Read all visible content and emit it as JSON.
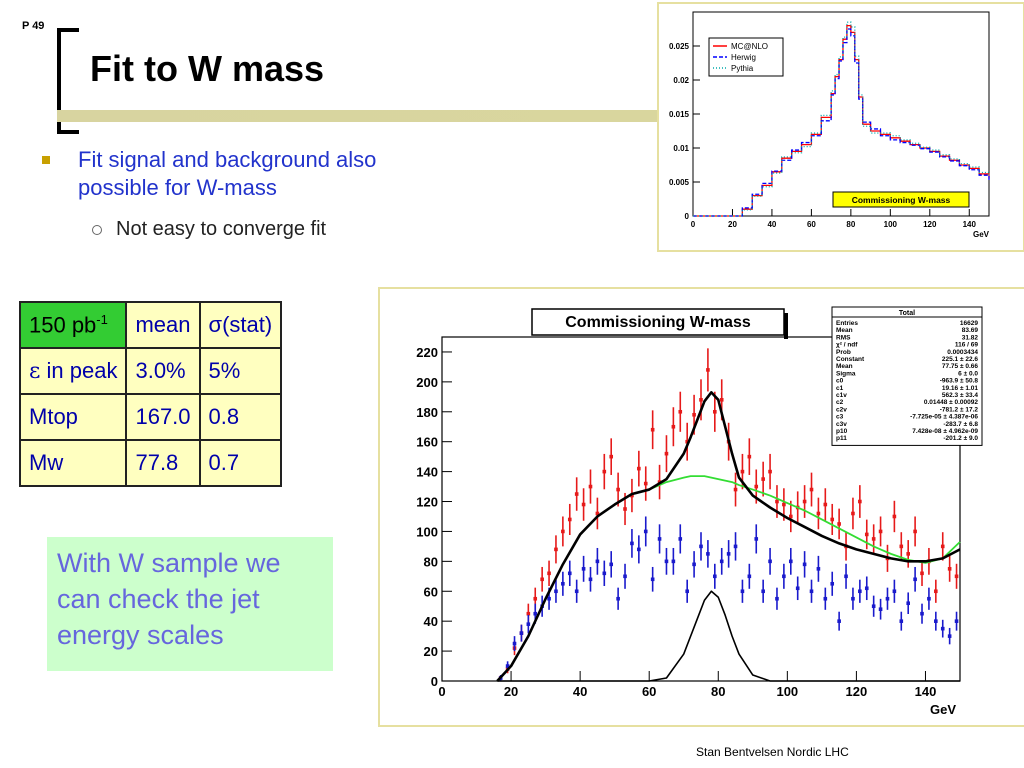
{
  "slide": {
    "page_number": "P 49",
    "title": "Fit to W mass",
    "bullet1": "Fit signal and background also possible for W-mass",
    "bullet2": "Not easy to converge fit",
    "note": "With W sample we can check the jet energy scales",
    "footer": "Stan Bentvelsen Nordic LHC"
  },
  "table": {
    "header": [
      "150 pb",
      "-1",
      "mean",
      "σ(stat)"
    ],
    "rows": [
      {
        "label_sym": "ε",
        "label": " in peak",
        "mean": "3.0%",
        "stat": "5%"
      },
      {
        "label": "Mtop",
        "mean": "167.0",
        "stat": "0.8"
      },
      {
        "label": "Mw",
        "mean": "77.8",
        "stat": "0.7"
      }
    ]
  },
  "colors": {
    "red": "#e61a1a",
    "blue": "#1a1acc",
    "green": "#33dd33",
    "black": "#000000",
    "table_bg": "#ffffc0",
    "header_bg": "#33cc33",
    "note_bg": "#ccffcc"
  },
  "chart_data": [
    {
      "type": "line",
      "legend_placement": "top-left",
      "xlabel": "GeV",
      "xlim": [
        0,
        150
      ],
      "ylim": [
        0,
        0.03
      ],
      "xticks": [
        "0",
        "20",
        "40",
        "60",
        "80",
        "100",
        "120",
        "140"
      ],
      "yticks": [
        "0",
        "0.005",
        "0.01",
        "0.015",
        "0.02",
        "0.025"
      ],
      "label_box": "Commissioning W-mass",
      "x": [
        0,
        10,
        15,
        20,
        25,
        30,
        35,
        40,
        45,
        50,
        55,
        60,
        65,
        70,
        72,
        74,
        76,
        78,
        80,
        82,
        84,
        86,
        90,
        95,
        100,
        105,
        110,
        115,
        120,
        125,
        130,
        135,
        140,
        145,
        150
      ],
      "series": [
        {
          "name": "MC@NLO",
          "values": [
            0,
            0,
            0,
            0,
            0.001,
            0.003,
            0.0045,
            0.0065,
            0.0085,
            0.0095,
            0.0105,
            0.012,
            0.0145,
            0.018,
            0.0205,
            0.023,
            0.026,
            0.028,
            0.027,
            0.023,
            0.0175,
            0.0135,
            0.0125,
            0.012,
            0.0115,
            0.011,
            0.0105,
            0.01,
            0.0095,
            0.0088,
            0.0082,
            0.0075,
            0.007,
            0.0062,
            0.0055
          ]
        },
        {
          "name": "Herwig",
          "values": [
            0,
            0,
            0,
            0,
            0.0012,
            0.0032,
            0.0048,
            0.0066,
            0.0082,
            0.0097,
            0.0108,
            0.0118,
            0.014,
            0.0178,
            0.0202,
            0.0228,
            0.0255,
            0.0275,
            0.0265,
            0.0225,
            0.0172,
            0.0138,
            0.0128,
            0.0118,
            0.0112,
            0.0108,
            0.0104,
            0.0099,
            0.0094,
            0.0087,
            0.0081,
            0.0074,
            0.0068,
            0.006,
            0.0052
          ]
        },
        {
          "name": "Pythia",
          "values": [
            0,
            0,
            0,
            0,
            0.0009,
            0.0029,
            0.0043,
            0.0063,
            0.0087,
            0.0093,
            0.0102,
            0.0122,
            0.0148,
            0.0184,
            0.0208,
            0.0234,
            0.0263,
            0.0285,
            0.0278,
            0.0235,
            0.0178,
            0.0132,
            0.0122,
            0.0122,
            0.0118,
            0.0112,
            0.0107,
            0.0101,
            0.0097,
            0.009,
            0.0084,
            0.0077,
            0.0072,
            0.0064,
            0.0057
          ]
        }
      ]
    },
    {
      "type": "scatter",
      "title": "Commissioning W-mass",
      "xlabel": "GeV",
      "xlim": [
        0,
        150
      ],
      "ylim": [
        0,
        230
      ],
      "xticks": [
        "0",
        "20",
        "40",
        "60",
        "80",
        "100",
        "120",
        "140"
      ],
      "yticks": [
        "0",
        "20",
        "40",
        "60",
        "80",
        "100",
        "120",
        "140",
        "160",
        "180",
        "200",
        "220"
      ],
      "series": [
        {
          "name": "",
          "color": "red",
          "x": [
            17,
            19,
            21,
            23,
            25,
            27,
            29,
            31,
            33,
            35,
            37,
            39,
            41,
            43,
            45,
            47,
            49,
            51,
            53,
            55,
            57,
            59,
            61,
            63,
            65,
            67,
            69,
            71,
            73,
            75,
            77,
            79,
            81,
            83,
            85,
            87,
            89,
            91,
            93,
            95,
            97,
            99,
            101,
            103,
            105,
            107,
            109,
            111,
            113,
            115,
            117,
            119,
            121,
            123,
            125,
            127,
            129,
            131,
            133,
            135,
            137,
            139,
            141,
            143,
            145,
            147,
            149
          ],
          "values": [
            2,
            8,
            22,
            32,
            45,
            55,
            68,
            72,
            88,
            100,
            108,
            125,
            118,
            130,
            112,
            140,
            150,
            128,
            115,
            124,
            142,
            132,
            168,
            133,
            152,
            170,
            180,
            160,
            178,
            188,
            208,
            180,
            188,
            160,
            128,
            140,
            150,
            130,
            135,
            140,
            120,
            118,
            110,
            116,
            120,
            128,
            112,
            118,
            108,
            105,
            90,
            112,
            120,
            98,
            95,
            100,
            82,
            110,
            90,
            85,
            100,
            72,
            80,
            60,
            90,
            75,
            70
          ]
        },
        {
          "name": "",
          "color": "blue",
          "x": [
            17,
            19,
            21,
            23,
            25,
            27,
            29,
            31,
            33,
            35,
            37,
            39,
            41,
            43,
            45,
            47,
            49,
            51,
            53,
            55,
            57,
            59,
            61,
            63,
            65,
            67,
            69,
            71,
            73,
            75,
            77,
            79,
            81,
            83,
            85,
            87,
            89,
            91,
            93,
            95,
            97,
            99,
            101,
            103,
            105,
            107,
            109,
            111,
            113,
            115,
            117,
            119,
            121,
            123,
            125,
            127,
            129,
            131,
            133,
            135,
            137,
            139,
            141,
            143,
            145,
            147,
            149
          ],
          "values": [
            2,
            10,
            25,
            32,
            38,
            45,
            50,
            55,
            60,
            65,
            72,
            60,
            75,
            68,
            80,
            72,
            78,
            55,
            70,
            92,
            88,
            100,
            68,
            95,
            80,
            80,
            95,
            60,
            78,
            90,
            85,
            70,
            80,
            85,
            90,
            60,
            70,
            95,
            60,
            80,
            55,
            70,
            80,
            62,
            78,
            60,
            75,
            55,
            65,
            40,
            70,
            55,
            60,
            62,
            50,
            48,
            55,
            60,
            40,
            52,
            68,
            45,
            55,
            40,
            35,
            30,
            40
          ]
        }
      ],
      "fit": {
        "name": "Total",
        "x": [
          16,
          20,
          25,
          30,
          35,
          40,
          45,
          50,
          55,
          60,
          65,
          70,
          72,
          74,
          76,
          78,
          80,
          82,
          84,
          86,
          90,
          95,
          100,
          105,
          110,
          115,
          120,
          125,
          130,
          135,
          140,
          145,
          150
        ],
        "total": [
          0,
          10,
          30,
          55,
          78,
          98,
          110,
          118,
          125,
          128,
          135,
          152,
          163,
          175,
          187,
          193,
          188,
          170,
          152,
          136,
          124,
          116,
          109,
          103,
          97,
          92,
          88,
          85,
          82,
          80,
          80,
          82,
          88
        ],
        "background": [
          0,
          10,
          30,
          55,
          78,
          98,
          110,
          118,
          125,
          128,
          133,
          136,
          137,
          137,
          137,
          136,
          135,
          134,
          133,
          131,
          128,
          124,
          119,
          114,
          108,
          102,
          96,
          90,
          85,
          81,
          79,
          82,
          93
        ],
        "signal": [
          0,
          0,
          0,
          0,
          0,
          0,
          0,
          0,
          0,
          0,
          2,
          18,
          30,
          42,
          54,
          60,
          56,
          44,
          30,
          18,
          4,
          0,
          0,
          0,
          0,
          0,
          0,
          0,
          0,
          0,
          0,
          0,
          0
        ]
      },
      "stats": {
        "header": "Total",
        "rows": [
          [
            "Entries",
            "16629"
          ],
          [
            "Mean",
            "83.69"
          ],
          [
            "RMS",
            "31.82"
          ],
          [
            "χ² / ndf",
            "116 / 69"
          ],
          [
            "Prob",
            "0.0003434"
          ],
          [
            "Constant",
            "225.1 ± 22.6"
          ],
          [
            "Mean",
            "77.75 ± 0.66"
          ],
          [
            "Sigma",
            "6 ± 0.0"
          ],
          [
            "c0",
            "-963.9 ± 50.8"
          ],
          [
            "c1",
            "19.16 ± 1.01"
          ],
          [
            "c1v",
            "562.3 ± 33.4"
          ],
          [
            "c2",
            "0.01448 ± 0.00092"
          ],
          [
            "c2v",
            "-781.2 ± 17.2"
          ],
          [
            "c3",
            "-7.725e-05 ± 4.387e-06"
          ],
          [
            "c3v",
            "-283.7 ± 6.8"
          ],
          [
            "p10",
            "7.428e-08 ± 4.962e-09"
          ],
          [
            "p11",
            "-201.2 ± 9.0"
          ]
        ]
      }
    }
  ]
}
